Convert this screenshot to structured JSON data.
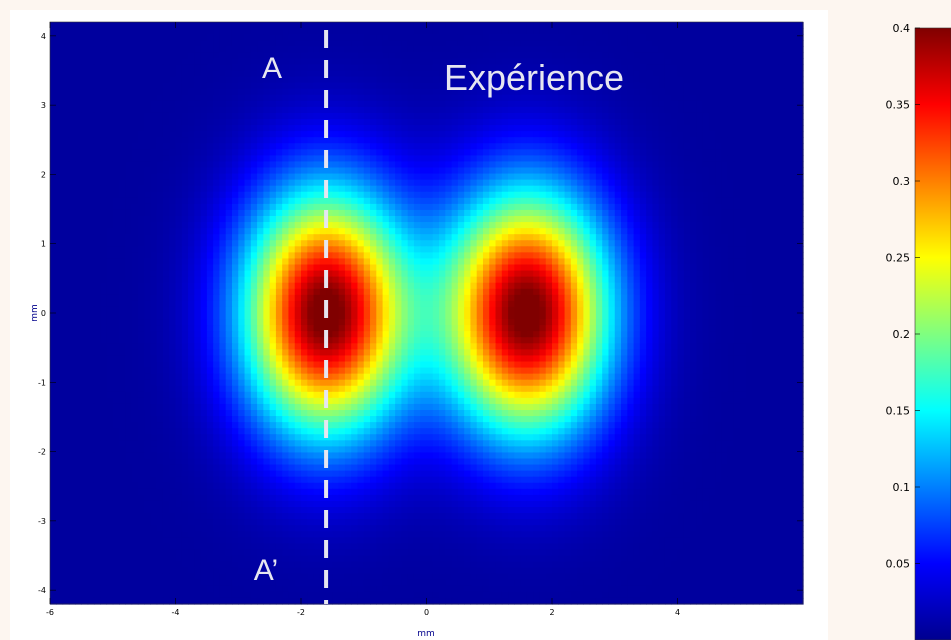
{
  "chart_data": [
    {
      "type": "heatmap",
      "title": "",
      "xlabel": "mm",
      "ylabel": "mm",
      "xlim": [
        -6,
        6
      ],
      "ylim": [
        -4.2,
        4.2
      ],
      "x_ticks": [
        -6,
        -4,
        -2,
        0,
        2,
        4
      ],
      "y_ticks": [
        4,
        3,
        2,
        1,
        0,
        -1,
        -2,
        -3,
        -4
      ],
      "colorbar": {
        "range": [
          0,
          0.4
        ],
        "ticks": [
          0.4,
          0.35,
          0.3,
          0.25,
          0.2,
          0.15,
          0.1,
          0.05
        ],
        "colormap": "jet"
      },
      "peaks": [
        {
          "x": -1.6,
          "y": 0,
          "peak_value": 0.4,
          "sigma_x": 0.9,
          "sigma_y": 1.2
        },
        {
          "x": 1.6,
          "y": 0,
          "peak_value": 0.4,
          "sigma_x": 0.9,
          "sigma_y": 1.2
        }
      ],
      "cut_line": {
        "x": -1.6,
        "top_label": "A",
        "bottom_label": "A’"
      },
      "annotations": [
        "Expérience",
        "A",
        "A’"
      ]
    }
  ],
  "colors": {
    "background": "#fdf6f0",
    "cut_line": "#e6e6f0",
    "annotation_text": "#e6e6f0"
  }
}
